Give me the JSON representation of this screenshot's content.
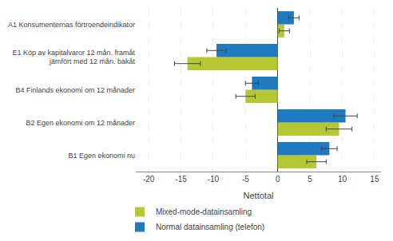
{
  "chart_data": {
    "type": "bar",
    "orientation": "horizontal",
    "categories": [
      "B1 Egen ekonomi nu",
      "B2 Egen ekonomi om 12 månader",
      "B4 Finlands ekonomi om 12 månader",
      "E1 Köp av kapitalvaror 12 mån. framåt\njämfört med 12 mån. bakåt",
      "A1 Konsumenternas förtroendeindikator"
    ],
    "series": [
      {
        "name": "Mixed-mode-datainsamling",
        "color": "#b5c832",
        "values": [
          6.0,
          9.5,
          -5.0,
          -14.0,
          1.0
        ],
        "errors": [
          1.5,
          2.0,
          1.5,
          2.0,
          0.8
        ]
      },
      {
        "name": "Normal datainsamling (telefon)",
        "color": "#1f7abf",
        "values": [
          8.0,
          10.5,
          -4.0,
          -9.5,
          2.5
        ],
        "errors": [
          1.2,
          1.8,
          1.0,
          1.5,
          0.8
        ]
      }
    ],
    "xlabel": "Nettotal",
    "xlim": [
      -22,
      16
    ],
    "xticks": [
      -20,
      -15,
      -10,
      -5,
      0,
      5,
      10,
      15
    ],
    "grid": true,
    "legend": "bottom"
  }
}
